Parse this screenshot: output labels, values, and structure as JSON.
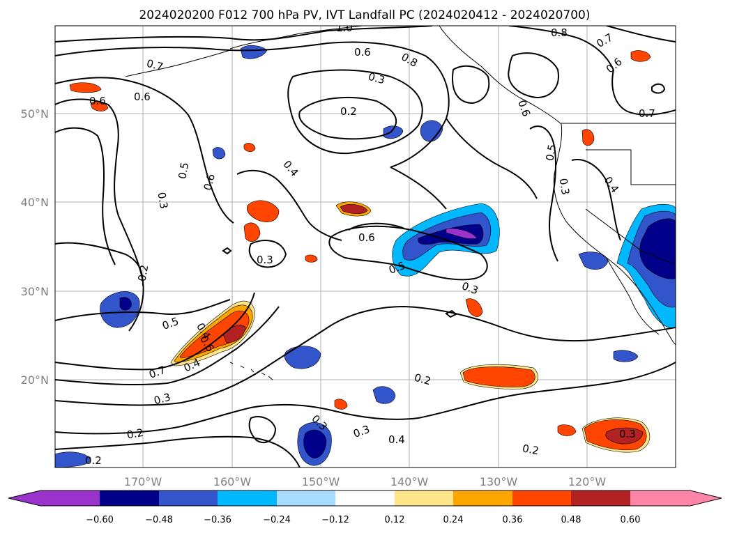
{
  "title": "2024020200 F012 700 hPa PV, IVT Landfall PC (2024020412 - 2024020700)",
  "lat_ticks": [
    "20°N",
    "30°N",
    "40°N",
    "50°N"
  ],
  "lon_ticks": [
    "170°W",
    "160°W",
    "150°W",
    "140°W",
    "130°W",
    "120°W"
  ],
  "colorbar": {
    "ticks": [
      "−0.60",
      "−0.48",
      "−0.36",
      "−0.24",
      "−0.12",
      "0.12",
      "0.24",
      "0.36",
      "0.48",
      "0.60"
    ],
    "colors": [
      "#9a33cc",
      "#00008b",
      "#3355cc",
      "#00b8ff",
      "#a8dcff",
      "#ffffff",
      "#ffe58a",
      "#ffa500",
      "#ff4500",
      "#b22222",
      "#ff85a8"
    ]
  },
  "contour_labels": [
    "1.0",
    "0.8",
    "0.7",
    "0.6",
    "0.8",
    "0.6",
    "0.3",
    "0.7",
    "0.6",
    "0.6",
    "0.6",
    "0.2",
    "0.7",
    "0.5",
    "0.5",
    "0.6",
    "0.4",
    "0.3",
    "0.4",
    "0.3",
    "0.6",
    "0.5",
    "0.3",
    "0.3",
    "0.2",
    "0.4",
    "0.5",
    "0.6",
    "0.7",
    "0.4",
    "0.2",
    "0.3",
    "0.2",
    "0.3",
    "0.3",
    "0.4",
    "0.2",
    "0.2",
    "0.3"
  ]
}
